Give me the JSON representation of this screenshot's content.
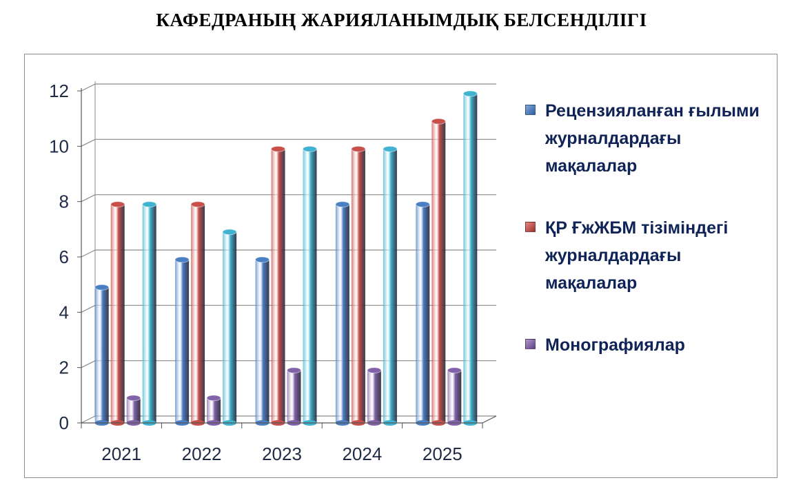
{
  "title": "КАФЕДРАНЫҢ ЖАРИЯЛАНЫМДЫҚ БЕЛСЕНДІЛІГІ",
  "chart_data": {
    "type": "bar",
    "style": "3d-cylinder",
    "categories": [
      "2021",
      "2022",
      "2023",
      "2024",
      "2025"
    ],
    "series": [
      {
        "name": "Рецензияланған ғылыми журналдардағы мақалалар",
        "values": [
          5,
          6,
          6,
          8,
          8
        ],
        "color": "#4a7fc4"
      },
      {
        "name": "ҚР ҒжЖБМ тізіміндегі журналдардағы мақалалар",
        "values": [
          8,
          8,
          10,
          10,
          11
        ],
        "color": "#c8504b"
      },
      {
        "name": "Монографиялар",
        "values": [
          1,
          1,
          2,
          2,
          2
        ],
        "color": "#8262a8"
      },
      {
        "name": "",
        "values": [
          8,
          7,
          10,
          10,
          12
        ],
        "color": "#3fb3cf"
      }
    ],
    "yticks": [
      "0",
      "2",
      "4",
      "6",
      "8",
      "10",
      "12"
    ],
    "ylim": [
      0,
      12
    ],
    "grid": true,
    "legend": "right"
  }
}
